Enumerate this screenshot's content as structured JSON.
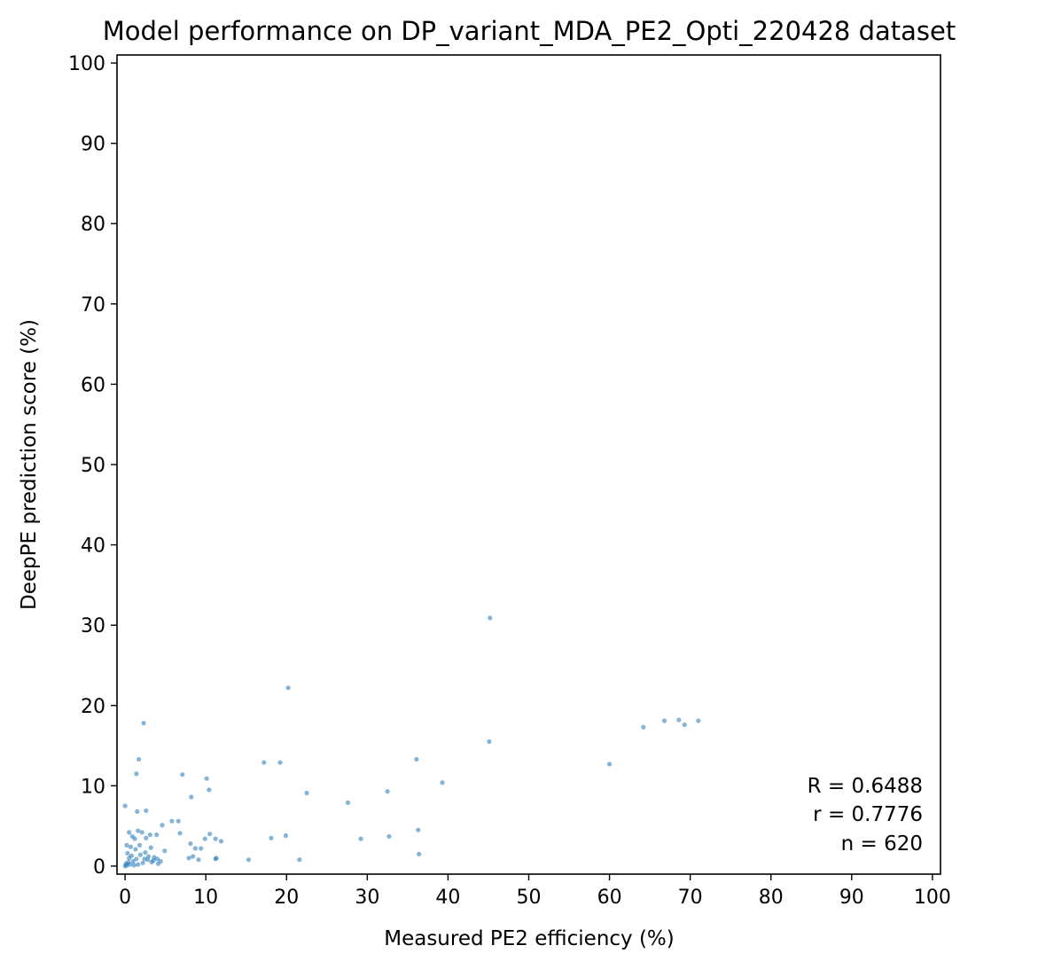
{
  "chart_data": {
    "type": "scatter",
    "title": "Model performance on DP_variant_MDA_PE2_Opti_220428 dataset",
    "xlabel": "Measured PE2 efficiency (%)",
    "ylabel": "DeepPE prediction score (%)",
    "xlim": [
      -1,
      101
    ],
    "ylim": [
      -1,
      101
    ],
    "xticks": [
      "0",
      "10",
      "20",
      "30",
      "40",
      "50",
      "60",
      "70",
      "80",
      "90",
      "100"
    ],
    "yticks": [
      "0",
      "10",
      "20",
      "30",
      "40",
      "50",
      "60",
      "70",
      "80",
      "90",
      "100"
    ],
    "grid": false,
    "legend": "none",
    "annotations": [
      "R = 0.6488",
      "r = 0.7776",
      "n = 620"
    ],
    "annotation_placement": "bottom-right",
    "point_color": "#1f77b4",
    "points": [
      [
        45.2,
        30.9
      ],
      [
        20.2,
        22.2
      ],
      [
        2.3,
        17.8
      ],
      [
        64.2,
        17.3
      ],
      [
        66.8,
        18.1
      ],
      [
        68.6,
        18.2
      ],
      [
        69.3,
        17.6
      ],
      [
        71.0,
        18.1
      ],
      [
        45.1,
        15.5
      ],
      [
        36.1,
        13.3
      ],
      [
        1.7,
        13.3
      ],
      [
        17.2,
        12.9
      ],
      [
        19.2,
        12.9
      ],
      [
        60.0,
        12.7
      ],
      [
        1.4,
        11.5
      ],
      [
        7.1,
        11.4
      ],
      [
        10.1,
        10.9
      ],
      [
        39.3,
        10.4
      ],
      [
        10.4,
        9.5
      ],
      [
        32.5,
        9.3
      ],
      [
        22.5,
        9.1
      ],
      [
        8.2,
        8.6
      ],
      [
        27.6,
        7.9
      ],
      [
        0.0,
        7.5
      ],
      [
        1.5,
        6.8
      ],
      [
        2.6,
        6.9
      ],
      [
        5.8,
        5.6
      ],
      [
        6.6,
        5.6
      ],
      [
        4.6,
        5.1
      ],
      [
        6.8,
        4.1
      ],
      [
        1.6,
        4.4
      ],
      [
        2.1,
        4.2
      ],
      [
        0.5,
        4.2
      ],
      [
        36.3,
        4.5
      ],
      [
        0.9,
        3.7
      ],
      [
        1.2,
        3.4
      ],
      [
        2.6,
        3.5
      ],
      [
        3.1,
        3.9
      ],
      [
        3.9,
        3.9
      ],
      [
        9.9,
        3.4
      ],
      [
        10.5,
        4.0
      ],
      [
        11.2,
        3.4
      ],
      [
        11.9,
        3.1
      ],
      [
        18.1,
        3.5
      ],
      [
        19.9,
        3.8
      ],
      [
        29.2,
        3.4
      ],
      [
        32.7,
        3.7
      ],
      [
        8.1,
        2.8
      ],
      [
        8.7,
        2.2
      ],
      [
        9.4,
        2.2
      ],
      [
        4.9,
        1.9
      ],
      [
        36.4,
        1.5
      ],
      [
        7.9,
        1.0
      ],
      [
        8.4,
        1.2
      ],
      [
        9.1,
        0.8
      ],
      [
        11.2,
        0.9
      ],
      [
        11.3,
        1.0
      ],
      [
        15.3,
        0.8
      ],
      [
        21.6,
        0.8
      ],
      [
        0.2,
        2.6
      ],
      [
        0.7,
        2.4
      ],
      [
        1.3,
        2.1
      ],
      [
        1.8,
        2.6
      ],
      [
        2.5,
        1.7
      ],
      [
        3.2,
        2.3
      ],
      [
        3.6,
        1.1
      ],
      [
        4.0,
        0.9
      ],
      [
        4.4,
        0.6
      ],
      [
        4.1,
        0.3
      ],
      [
        3.3,
        0.5
      ],
      [
        2.8,
        0.8
      ],
      [
        2.2,
        0.4
      ],
      [
        1.6,
        0.2
      ],
      [
        1.0,
        0.6
      ],
      [
        0.5,
        1.0
      ],
      [
        0.1,
        0.3
      ],
      [
        0.3,
        1.6
      ],
      [
        0.8,
        1.3
      ],
      [
        1.4,
        0.9
      ],
      [
        1.9,
        1.4
      ],
      [
        2.4,
        0.9
      ],
      [
        2.9,
        1.2
      ],
      [
        3.5,
        0.7
      ],
      [
        0.0,
        0.0
      ],
      [
        0.2,
        0.1
      ],
      [
        0.6,
        0.2
      ],
      [
        1.1,
        0.1
      ],
      [
        0.4,
        0.5
      ]
    ]
  }
}
